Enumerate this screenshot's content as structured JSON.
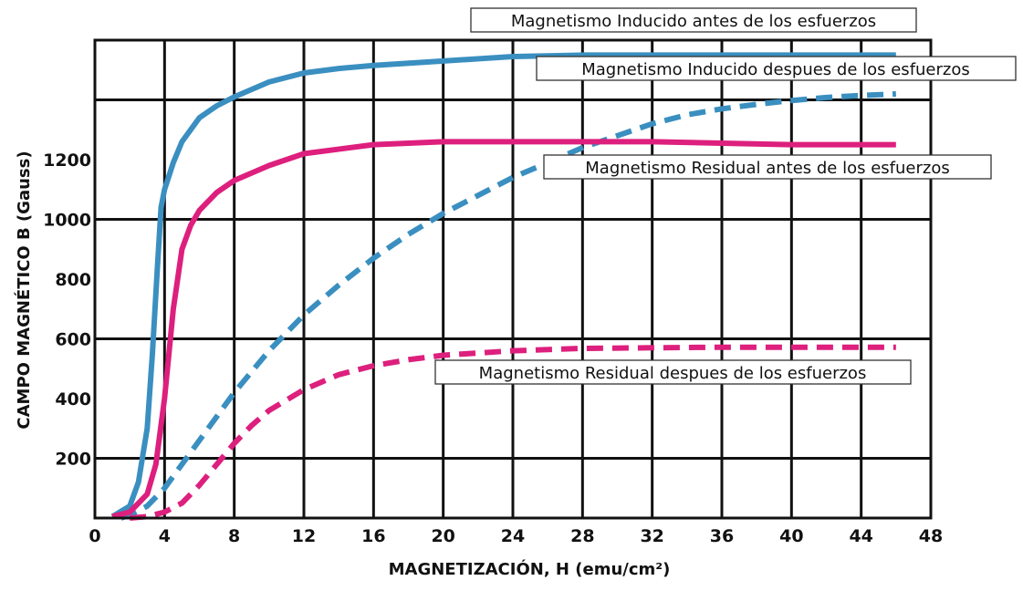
{
  "chart_data": {
    "type": "line",
    "title": "",
    "xlabel": "MAGNETIZACIÓN, H (emu/cm²)",
    "ylabel": "CAMPO MAGNÉTICO B (Gauss)",
    "xlim": [
      0,
      48
    ],
    "ylim": [
      0,
      1600
    ],
    "x_ticks": [
      0,
      4,
      8,
      12,
      16,
      20,
      24,
      28,
      32,
      36,
      40,
      44,
      48
    ],
    "y_ticks": [
      200,
      400,
      600,
      800,
      1000,
      1200
    ],
    "grid": true,
    "series": [
      {
        "name": "Magnetismo Inducido antes de los esfuerzos",
        "color": "#3a8fc0",
        "dash": "solid",
        "x": [
          1,
          2,
          2.5,
          3,
          3.3,
          3.6,
          3.8,
          4,
          4.5,
          5,
          6,
          7,
          8,
          10,
          12,
          14,
          16,
          20,
          24,
          28,
          32,
          36,
          40,
          44,
          46
        ],
        "y": [
          5,
          40,
          120,
          300,
          550,
          850,
          1040,
          1100,
          1190,
          1260,
          1340,
          1380,
          1410,
          1460,
          1490,
          1505,
          1515,
          1530,
          1545,
          1550,
          1550,
          1550,
          1550,
          1550,
          1550
        ]
      },
      {
        "name": "Magnetismo Inducido despues de los esfuerzos",
        "color": "#3a8fc0",
        "dash": "dashed",
        "x": [
          1.5,
          2,
          3,
          4,
          5,
          6,
          8,
          10,
          12,
          14,
          16,
          18,
          20,
          22,
          24,
          26,
          28,
          30,
          32,
          34,
          36,
          38,
          40,
          42,
          44,
          46
        ],
        "y": [
          0,
          10,
          40,
          100,
          180,
          260,
          420,
          560,
          680,
          780,
          870,
          950,
          1020,
          1080,
          1140,
          1190,
          1240,
          1280,
          1320,
          1350,
          1370,
          1385,
          1398,
          1408,
          1415,
          1420
        ]
      },
      {
        "name": "Magnetismo Residual antes de los esfuerzos",
        "color": "#dd1f7d",
        "dash": "solid",
        "x": [
          1,
          2,
          3,
          3.5,
          4,
          4.5,
          5,
          5.5,
          6,
          7,
          8,
          10,
          12,
          16,
          20,
          24,
          28,
          32,
          36,
          40,
          44,
          46
        ],
        "y": [
          5,
          20,
          80,
          180,
          400,
          700,
          900,
          980,
          1030,
          1090,
          1130,
          1180,
          1220,
          1250,
          1260,
          1260,
          1260,
          1260,
          1255,
          1250,
          1250,
          1250
        ]
      },
      {
        "name": "Magnetismo Residual despues de los esfuerzos",
        "color": "#dd1f7d",
        "dash": "dashed",
        "x": [
          2,
          3,
          4,
          5,
          6,
          7,
          8,
          9,
          10,
          12,
          14,
          16,
          18,
          20,
          24,
          28,
          32,
          36,
          40,
          44,
          46
        ],
        "y": [
          0,
          5,
          20,
          50,
          110,
          180,
          250,
          310,
          360,
          430,
          480,
          510,
          530,
          545,
          560,
          568,
          570,
          572,
          572,
          572,
          572
        ]
      }
    ],
    "annotations": [
      "Magnetismo Inducido antes de los esfuerzos",
      "Magnetismo Inducido despues de los esfuerzos",
      "Magnetismo Residual antes de los esfuerzos",
      "Magnetismo Residual despues de los esfuerzos"
    ]
  }
}
